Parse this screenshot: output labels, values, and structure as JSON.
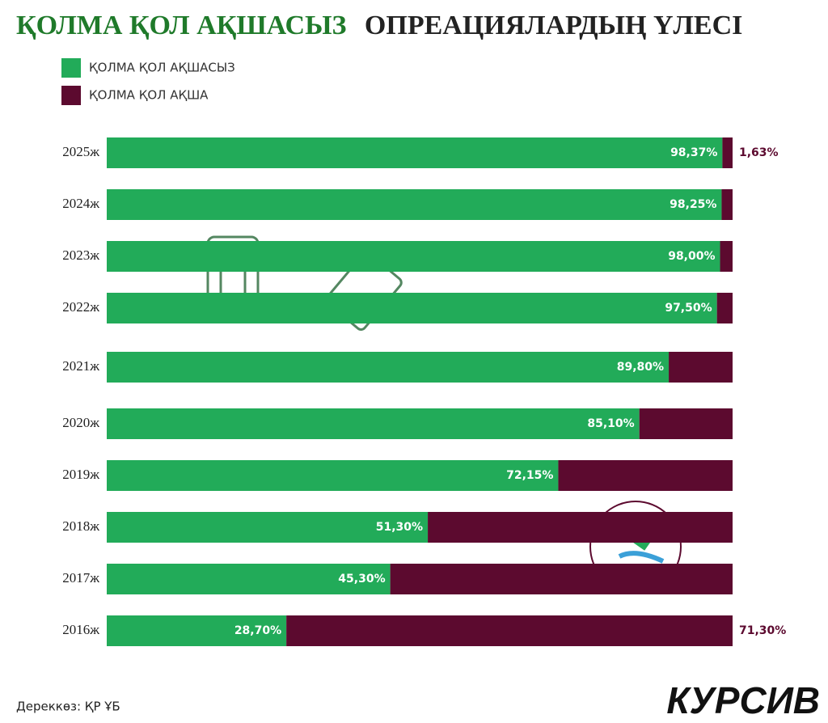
{
  "chart_data": {
    "type": "stacked-bar-horizontal",
    "title": [
      "ҚОЛМА ҚОЛ  АҚШАСЫЗ",
      "ОПРЕАЦИЯЛАРДЫҢ ҮЛЕСІ"
    ],
    "categories": [
      "2025ж",
      "2024ж",
      "2023ж",
      "2022ж",
      "2021ж",
      "2020ж",
      "2019ж",
      "2018ж",
      "2017ж",
      "2016ж"
    ],
    "series": [
      {
        "name": "ҚОЛМА ҚОЛ АҚШАСЫЗ",
        "color": "#22ab59",
        "values": [
          98.37,
          98.25,
          98.0,
          97.5,
          89.8,
          85.1,
          72.15,
          51.3,
          45.3,
          28.7
        ],
        "value_labels": [
          "98,37%",
          "98,25%",
          "98,00%",
          "97,50%",
          "89,80%",
          "85,10%",
          "72,15%",
          "51,30%",
          "45,30%",
          "28,70%"
        ]
      },
      {
        "name": "ҚОЛМА ҚОЛ АҚША",
        "color": "#5c0a2f",
        "values": [
          1.63,
          1.75,
          2.0,
          2.5,
          10.2,
          14.9,
          27.85,
          48.7,
          54.7,
          71.3
        ],
        "value_labels": [
          "1,63%",
          null,
          null,
          null,
          null,
          null,
          null,
          null,
          null,
          "71,30%"
        ]
      }
    ],
    "source": "Дереккөз: ҚР ҰБ",
    "logo": "КУРСИВ"
  }
}
